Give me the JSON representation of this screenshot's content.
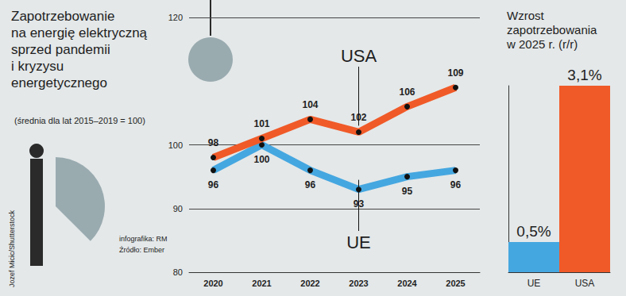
{
  "chart_data": [
    {
      "type": "line",
      "title": "Zapotrzebowanie\nna energię elektryczną\nsprzed pandemii\ni kryzysu\nenergetycznego",
      "subtitle": "(średnia dla lat 2015–2019 = 100)",
      "annotations": [
        "Jozef Micic/Shutterstock",
        "infografika: RM",
        "Źródło: Ember"
      ],
      "categories": [
        "2020",
        "2021",
        "2022",
        "2023",
        "2024",
        "2025"
      ],
      "series": [
        {
          "name": "USA",
          "color": "#f05a28",
          "values": [
            98,
            101,
            104,
            102,
            106,
            109
          ]
        },
        {
          "name": "UE",
          "color": "#45a7e0",
          "values": [
            96,
            100,
            96,
            93,
            95,
            96
          ]
        }
      ],
      "ylim": [
        80,
        120
      ],
      "yticks": [
        80,
        90,
        100,
        120
      ],
      "grid": true,
      "data_labels": true,
      "marker": "circle"
    },
    {
      "type": "bar",
      "title": "Wzrost\nzapotrzebowania\nw 2025 r. (r/r)",
      "categories": [
        "UE",
        "USA"
      ],
      "values": [
        0.5,
        3.1
      ],
      "value_labels": [
        "0,5%",
        "3,1%"
      ],
      "colors": [
        "#45a7e0",
        "#f05a28"
      ],
      "ylim": [
        0,
        3.1
      ],
      "tick_labels": "x",
      "data_labels": true
    }
  ]
}
